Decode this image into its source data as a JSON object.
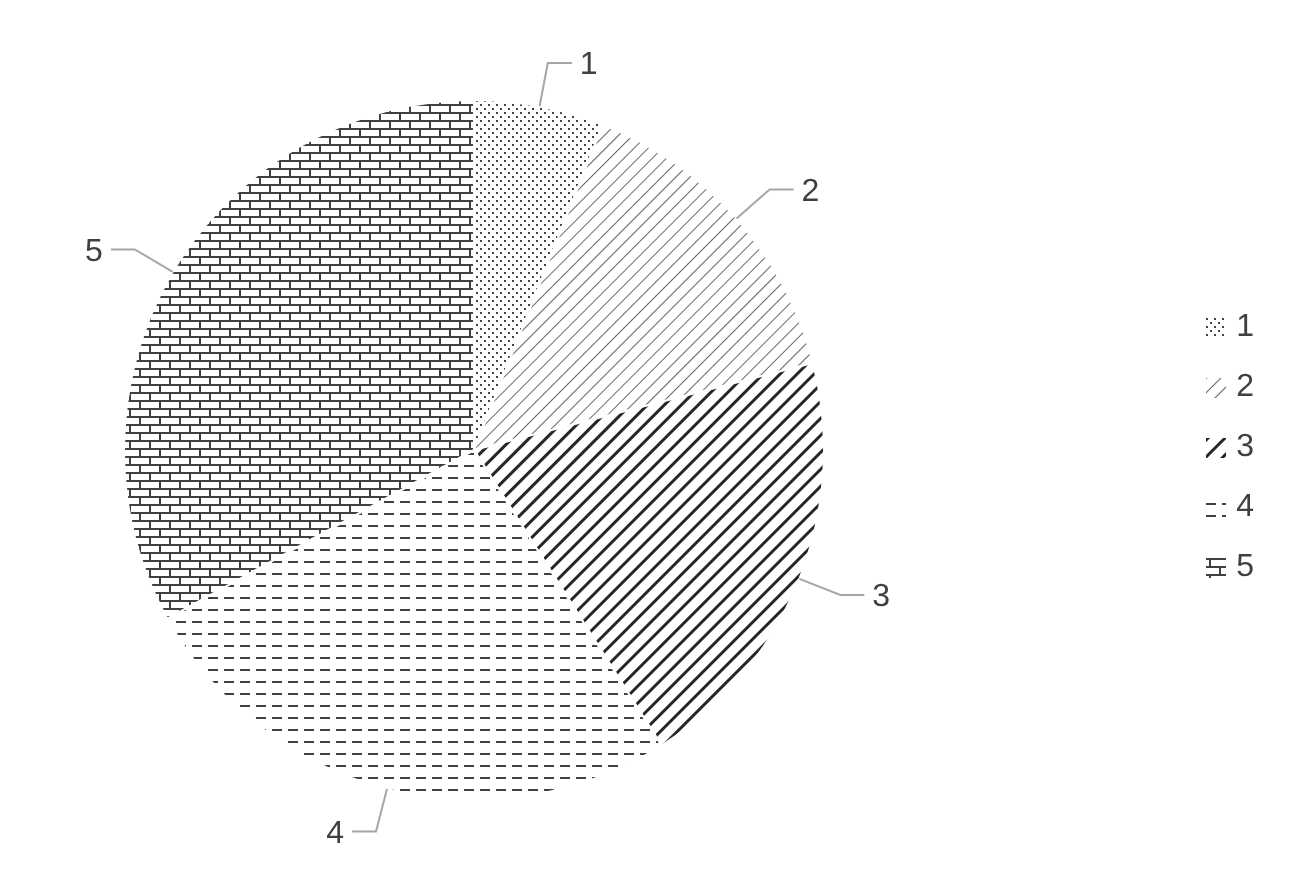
{
  "chart_data": {
    "type": "pie",
    "categories": [
      "1",
      "2",
      "3",
      "4",
      "5"
    ],
    "values": [
      6,
      15,
      20,
      26,
      33
    ],
    "colors": [
      "#ffffff",
      "#ffffff",
      "#ffffff",
      "#ffffff",
      "#ffffff"
    ],
    "legend": "right",
    "data_labels": false
  }
}
